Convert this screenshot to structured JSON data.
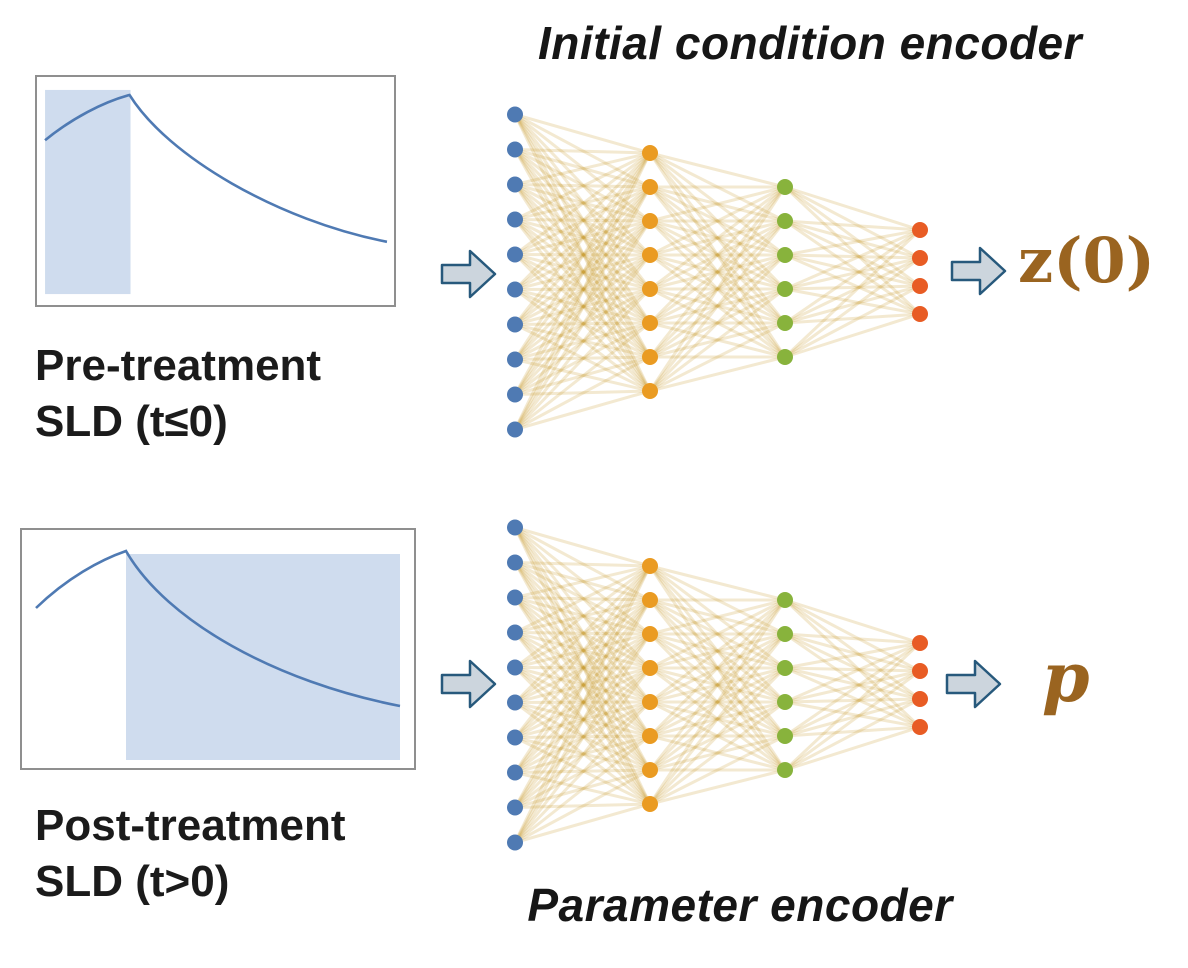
{
  "colors": {
    "edge": "#c4911a",
    "arrow_fill": "#ccd5dd",
    "arrow_stroke": "#27597c",
    "chart_line": "#4f7ab3",
    "chart_shade": "#cfdcee",
    "label_brown": "#9a6420"
  },
  "top": {
    "title": "Initial condition encoder",
    "input_label_line1": "Pre-treatment",
    "input_label_line2": "SLD (t≤0)",
    "output_label": "z(0)",
    "chart_shade_region": "left",
    "network": {
      "layers": [
        {
          "name": "input",
          "count": 10,
          "spacing": 35,
          "color": "#4f7ab3"
        },
        {
          "name": "hidden1",
          "count": 8,
          "spacing": 34,
          "color": "#ea9b22"
        },
        {
          "name": "hidden2",
          "count": 6,
          "spacing": 34,
          "color": "#88b33c"
        },
        {
          "name": "output",
          "count": 4,
          "spacing": 28,
          "color": "#e85c24"
        }
      ]
    }
  },
  "bottom": {
    "title": "Parameter encoder",
    "input_label_line1": "Post-treatment",
    "input_label_line2": "SLD (t>0)",
    "output_label": "p",
    "chart_shade_region": "right",
    "network": {
      "layers": [
        {
          "name": "input",
          "count": 10,
          "spacing": 35,
          "color": "#4f7ab3"
        },
        {
          "name": "hidden1",
          "count": 8,
          "spacing": 34,
          "color": "#ea9b22"
        },
        {
          "name": "hidden2",
          "count": 6,
          "spacing": 34,
          "color": "#88b33c"
        },
        {
          "name": "output",
          "count": 4,
          "spacing": 28,
          "color": "#e85c24"
        }
      ]
    }
  }
}
